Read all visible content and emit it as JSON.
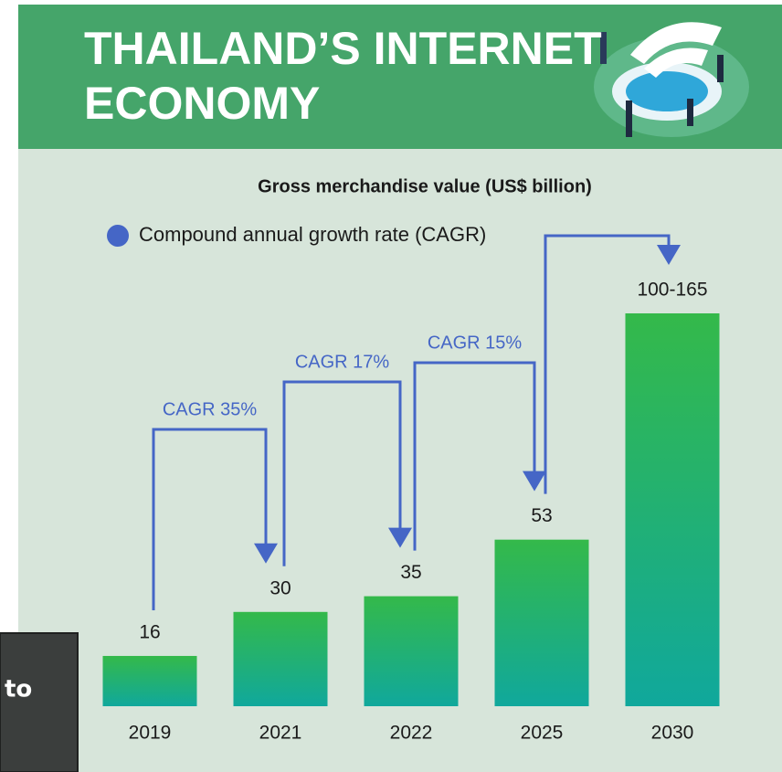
{
  "chart_data": {
    "type": "bar",
    "title": "THAILAND’S INTERNET ECONOMY",
    "subtitle": "Gross merchandise value (US$ billion)",
    "legend": {
      "label": "Compound annual growth rate (CAGR)",
      "color": "#4566c6"
    },
    "categories": [
      "2019",
      "2021",
      "2022",
      "2025",
      "2030"
    ],
    "values": [
      16,
      30,
      35,
      53,
      125
    ],
    "value_labels": [
      "16",
      "30",
      "35",
      "53",
      "100-165"
    ],
    "annotations": [
      "CAGR 35%",
      "CAGR 17%",
      "CAGR 15%"
    ],
    "ylim": [
      0,
      125
    ],
    "color": [
      "#34b94a",
      "#10a89c"
    ],
    "overlay_text": "to"
  }
}
